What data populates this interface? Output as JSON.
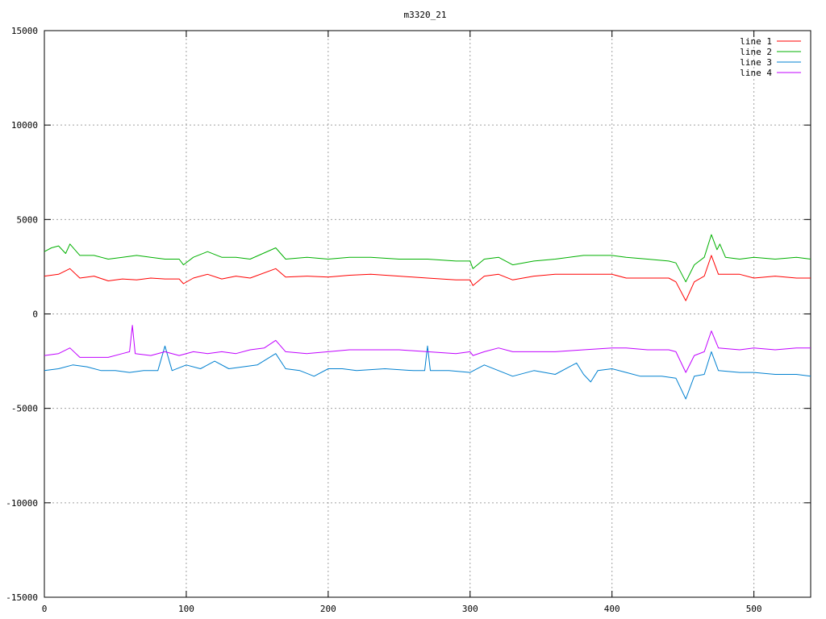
{
  "chart_data": {
    "type": "line",
    "title": "m3320_21",
    "xlabel": "",
    "ylabel": "",
    "xlim": [
      0,
      540
    ],
    "ylim": [
      -15000,
      15000
    ],
    "xticks": [
      0,
      100,
      200,
      300,
      400,
      500
    ],
    "yticks": [
      -15000,
      -10000,
      -5000,
      0,
      5000,
      10000,
      15000
    ],
    "grid": true,
    "legend_position": "top-right",
    "series": [
      {
        "name": "line 1",
        "color": "#ff0000",
        "points": [
          [
            0,
            2000
          ],
          [
            10,
            2100
          ],
          [
            18,
            2400
          ],
          [
            25,
            1900
          ],
          [
            35,
            2000
          ],
          [
            45,
            1750
          ],
          [
            55,
            1850
          ],
          [
            65,
            1800
          ],
          [
            75,
            1900
          ],
          [
            85,
            1850
          ],
          [
            95,
            1850
          ],
          [
            98,
            1600
          ],
          [
            105,
            1900
          ],
          [
            115,
            2100
          ],
          [
            125,
            1850
          ],
          [
            135,
            2000
          ],
          [
            145,
            1900
          ],
          [
            163,
            2400
          ],
          [
            170,
            1950
          ],
          [
            185,
            2000
          ],
          [
            200,
            1950
          ],
          [
            215,
            2050
          ],
          [
            230,
            2100
          ],
          [
            250,
            2000
          ],
          [
            270,
            1900
          ],
          [
            290,
            1800
          ],
          [
            300,
            1800
          ],
          [
            302,
            1500
          ],
          [
            310,
            2000
          ],
          [
            320,
            2100
          ],
          [
            330,
            1800
          ],
          [
            345,
            2000
          ],
          [
            360,
            2100
          ],
          [
            380,
            2100
          ],
          [
            400,
            2100
          ],
          [
            410,
            1900
          ],
          [
            425,
            1900
          ],
          [
            440,
            1900
          ],
          [
            445,
            1700
          ],
          [
            452,
            700
          ],
          [
            458,
            1700
          ],
          [
            465,
            2000
          ],
          [
            470,
            3100
          ],
          [
            475,
            2100
          ],
          [
            490,
            2100
          ],
          [
            500,
            1900
          ],
          [
            515,
            2000
          ],
          [
            530,
            1900
          ],
          [
            540,
            1900
          ]
        ]
      },
      {
        "name": "line 2",
        "color": "#00b000",
        "points": [
          [
            0,
            3300
          ],
          [
            5,
            3500
          ],
          [
            10,
            3600
          ],
          [
            15,
            3200
          ],
          [
            18,
            3700
          ],
          [
            25,
            3100
          ],
          [
            35,
            3100
          ],
          [
            45,
            2900
          ],
          [
            55,
            3000
          ],
          [
            65,
            3100
          ],
          [
            75,
            3000
          ],
          [
            85,
            2900
          ],
          [
            95,
            2900
          ],
          [
            98,
            2600
          ],
          [
            105,
            3000
          ],
          [
            115,
            3300
          ],
          [
            125,
            3000
          ],
          [
            135,
            3000
          ],
          [
            145,
            2900
          ],
          [
            163,
            3500
          ],
          [
            170,
            2900
          ],
          [
            185,
            3000
          ],
          [
            200,
            2900
          ],
          [
            215,
            3000
          ],
          [
            230,
            3000
          ],
          [
            250,
            2900
          ],
          [
            270,
            2900
          ],
          [
            290,
            2800
          ],
          [
            300,
            2800
          ],
          [
            302,
            2400
          ],
          [
            310,
            2900
          ],
          [
            320,
            3000
          ],
          [
            330,
            2600
          ],
          [
            345,
            2800
          ],
          [
            360,
            2900
          ],
          [
            380,
            3100
          ],
          [
            400,
            3100
          ],
          [
            410,
            3000
          ],
          [
            425,
            2900
          ],
          [
            440,
            2800
          ],
          [
            445,
            2700
          ],
          [
            452,
            1700
          ],
          [
            458,
            2600
          ],
          [
            465,
            3000
          ],
          [
            470,
            4200
          ],
          [
            474,
            3400
          ],
          [
            476,
            3700
          ],
          [
            480,
            3000
          ],
          [
            490,
            2900
          ],
          [
            500,
            3000
          ],
          [
            515,
            2900
          ],
          [
            530,
            3000
          ],
          [
            540,
            2900
          ]
        ]
      },
      {
        "name": "line 3",
        "color": "#0080d0",
        "points": [
          [
            0,
            -3000
          ],
          [
            10,
            -2900
          ],
          [
            20,
            -2700
          ],
          [
            30,
            -2800
          ],
          [
            40,
            -3000
          ],
          [
            50,
            -3000
          ],
          [
            60,
            -3100
          ],
          [
            70,
            -3000
          ],
          [
            80,
            -3000
          ],
          [
            85,
            -1700
          ],
          [
            90,
            -3000
          ],
          [
            100,
            -2700
          ],
          [
            110,
            -2900
          ],
          [
            120,
            -2500
          ],
          [
            130,
            -2900
          ],
          [
            140,
            -2800
          ],
          [
            150,
            -2700
          ],
          [
            163,
            -2100
          ],
          [
            170,
            -2900
          ],
          [
            180,
            -3000
          ],
          [
            190,
            -3300
          ],
          [
            200,
            -2900
          ],
          [
            210,
            -2900
          ],
          [
            220,
            -3000
          ],
          [
            240,
            -2900
          ],
          [
            260,
            -3000
          ],
          [
            268,
            -3000
          ],
          [
            270,
            -1700
          ],
          [
            272,
            -3000
          ],
          [
            285,
            -3000
          ],
          [
            300,
            -3100
          ],
          [
            310,
            -2700
          ],
          [
            320,
            -3000
          ],
          [
            330,
            -3300
          ],
          [
            345,
            -3000
          ],
          [
            360,
            -3200
          ],
          [
            370,
            -2800
          ],
          [
            375,
            -2600
          ],
          [
            380,
            -3200
          ],
          [
            385,
            -3600
          ],
          [
            390,
            -3000
          ],
          [
            400,
            -2900
          ],
          [
            410,
            -3100
          ],
          [
            420,
            -3300
          ],
          [
            435,
            -3300
          ],
          [
            445,
            -3400
          ],
          [
            452,
            -4500
          ],
          [
            458,
            -3300
          ],
          [
            465,
            -3200
          ],
          [
            470,
            -2000
          ],
          [
            475,
            -3000
          ],
          [
            490,
            -3100
          ],
          [
            500,
            -3100
          ],
          [
            515,
            -3200
          ],
          [
            530,
            -3200
          ],
          [
            540,
            -3300
          ]
        ]
      },
      {
        "name": "line 4",
        "color": "#c000ff",
        "points": [
          [
            0,
            -2200
          ],
          [
            10,
            -2100
          ],
          [
            18,
            -1800
          ],
          [
            25,
            -2300
          ],
          [
            35,
            -2300
          ],
          [
            45,
            -2300
          ],
          [
            55,
            -2100
          ],
          [
            60,
            -2000
          ],
          [
            62,
            -600
          ],
          [
            64,
            -2100
          ],
          [
            75,
            -2200
          ],
          [
            85,
            -2000
          ],
          [
            95,
            -2200
          ],
          [
            105,
            -2000
          ],
          [
            115,
            -2100
          ],
          [
            125,
            -2000
          ],
          [
            135,
            -2100
          ],
          [
            145,
            -1900
          ],
          [
            155,
            -1800
          ],
          [
            163,
            -1400
          ],
          [
            170,
            -2000
          ],
          [
            185,
            -2100
          ],
          [
            200,
            -2000
          ],
          [
            215,
            -1900
          ],
          [
            230,
            -1900
          ],
          [
            250,
            -1900
          ],
          [
            270,
            -2000
          ],
          [
            290,
            -2100
          ],
          [
            300,
            -2000
          ],
          [
            302,
            -2200
          ],
          [
            310,
            -2000
          ],
          [
            320,
            -1800
          ],
          [
            330,
            -2000
          ],
          [
            345,
            -2000
          ],
          [
            360,
            -2000
          ],
          [
            380,
            -1900
          ],
          [
            400,
            -1800
          ],
          [
            410,
            -1800
          ],
          [
            425,
            -1900
          ],
          [
            440,
            -1900
          ],
          [
            445,
            -2000
          ],
          [
            452,
            -3100
          ],
          [
            458,
            -2200
          ],
          [
            465,
            -2000
          ],
          [
            470,
            -900
          ],
          [
            475,
            -1800
          ],
          [
            490,
            -1900
          ],
          [
            500,
            -1800
          ],
          [
            515,
            -1900
          ],
          [
            530,
            -1800
          ],
          [
            540,
            -1800
          ]
        ]
      }
    ]
  }
}
